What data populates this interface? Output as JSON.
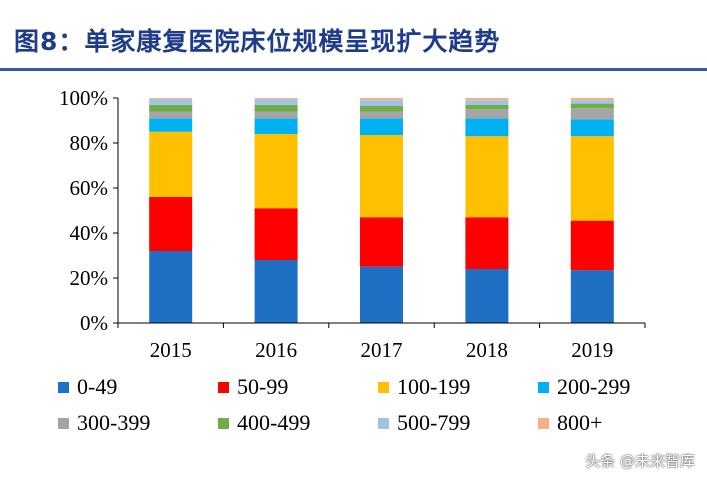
{
  "title": "图8：单家康复医院床位规模呈现扩大趋势",
  "watermark": "头条 @未来智库",
  "chart_data": {
    "type": "bar",
    "stacked": true,
    "categories": [
      "2015",
      "2016",
      "2017",
      "2018",
      "2019"
    ],
    "ylim": [
      0,
      100
    ],
    "yticks": [
      0,
      20,
      40,
      60,
      80,
      100
    ],
    "ytick_labels": [
      "0%",
      "20%",
      "40%",
      "60%",
      "80%",
      "100%"
    ],
    "xlabel": "",
    "ylabel": "",
    "legend_position": "bottom",
    "series": [
      {
        "name": "0-49",
        "color": "#1f6fc5",
        "values": [
          32,
          28,
          25,
          24,
          23.5
        ]
      },
      {
        "name": "50-99",
        "color": "#ff0000",
        "values": [
          24,
          23,
          22,
          23,
          22
        ]
      },
      {
        "name": "100-199",
        "color": "#ffc000",
        "values": [
          29,
          33,
          36.5,
          36,
          37.5
        ]
      },
      {
        "name": "200-299",
        "color": "#00b0f0",
        "values": [
          6,
          7,
          7.5,
          8,
          7.5
        ]
      },
      {
        "name": "300-399",
        "color": "#a5a5a5",
        "values": [
          3,
          3,
          3,
          4,
          5
        ]
      },
      {
        "name": "400-499",
        "color": "#70ad47",
        "values": [
          3,
          3,
          2.5,
          2,
          2
        ]
      },
      {
        "name": "500-799",
        "color": "#9dc3e6",
        "values": [
          2.5,
          2.5,
          2.5,
          2,
          1.5
        ]
      },
      {
        "name": "800+",
        "color": "#f4b183",
        "values": [
          0.5,
          0.5,
          1,
          1,
          1
        ]
      }
    ]
  }
}
